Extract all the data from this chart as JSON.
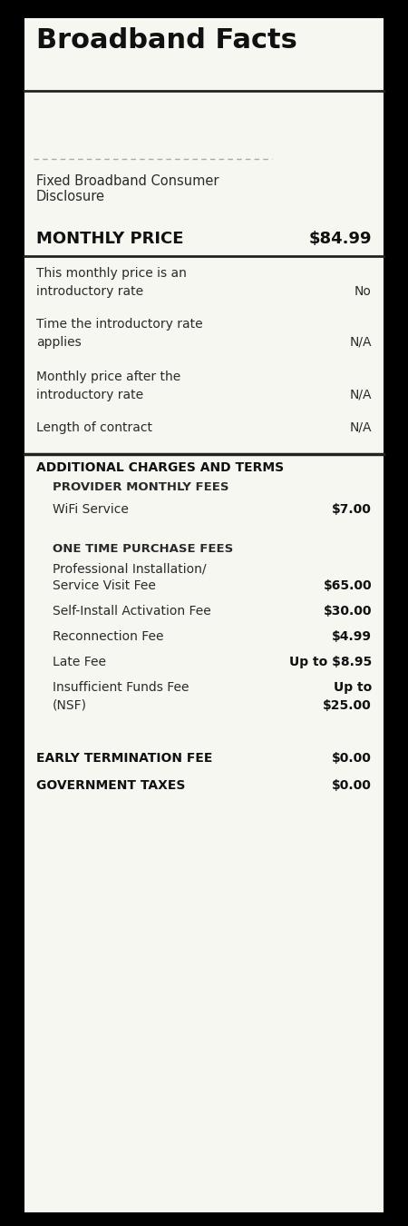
{
  "title": "Broadband Facts",
  "bg_color": "#f7f7f2",
  "card_color": "#f7f7f2",
  "outer_color": "#000000",
  "text_color": "#2a2a2a",
  "bar_color": "#1c1c1c",
  "fixed_label": "Fixed Broadband Consumer\nDisclosure",
  "monthly_price_label": "MONTHLY PRICE",
  "monthly_price_value": "$84.99",
  "rows": [
    {
      "label": "This monthly price is an\nintroductory rate",
      "value": "No"
    },
    {
      "label": "Time the introductory rate\napplies",
      "value": "N/A"
    },
    {
      "label": "Monthly price after the\nintroductory rate",
      "value": "N/A"
    },
    {
      "label": "Length of contract",
      "value": "N/A"
    }
  ],
  "section_additional": "ADDITIONAL CHARGES AND TERMS",
  "section_provider": "PROVIDER MONTHLY FEES",
  "wifi_label": "WiFi Service",
  "wifi_value": "$7.00",
  "section_one_time": "ONE TIME PURCHASE FEES",
  "fees": [
    {
      "label": "Professional Installation/\nService Visit Fee",
      "value": "$65.00",
      "value_line1": "",
      "value_line2": "$65.00"
    },
    {
      "label": "Self-Install Activation Fee",
      "value": "$30.00",
      "value_line1": "$30.00",
      "value_line2": ""
    },
    {
      "label": "Reconnection Fee",
      "value": "$4.99",
      "value_line1": "$4.99",
      "value_line2": ""
    },
    {
      "label": "Late Fee",
      "value": "Up to $8.95",
      "value_line1": "Up to $8.95",
      "value_line2": ""
    },
    {
      "label": "Insufficient Funds Fee\n(NSF)",
      "value": "Up to\n$25.00",
      "value_line1": "Up to",
      "value_line2": "$25.00"
    }
  ],
  "early_term_label": "EARLY TERMINATION FEE",
  "early_term_value": "$0.00",
  "gov_tax_label": "GOVERNMENT TAXES",
  "gov_tax_value": "$0.00",
  "logo_box1_color": "#c8c8c8",
  "logo_box2_color": "#d8d8d8",
  "dash_color": "#aaaaaa",
  "sep_color": "#2a2a2a"
}
